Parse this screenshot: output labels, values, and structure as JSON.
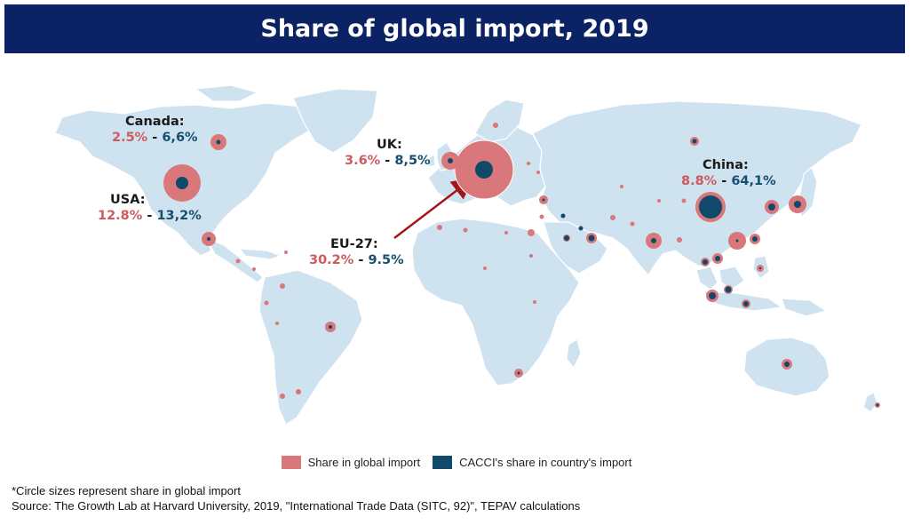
{
  "title": "Share of global import, 2019",
  "colors": {
    "global": "#d9777a",
    "cacci": "#0f4a6b",
    "land": "#cfe2f0",
    "title_bg": "#0b2265"
  },
  "callouts": {
    "canada": {
      "name": "Canada:",
      "global": "2.5%",
      "sep": " - ",
      "cacci": "6,6%"
    },
    "uk": {
      "name": "UK:",
      "global": "3.6%",
      "sep": " - ",
      "cacci": "8,5%"
    },
    "usa": {
      "name": "USA:",
      "global": "12.8%",
      "sep": " - ",
      "cacci": "13,2%"
    },
    "eu": {
      "name": "EU-27:",
      "global": "30.2%",
      "sep": " - ",
      "cacci": "9.5%"
    },
    "china": {
      "name": "China:",
      "global": "8.8%",
      "sep": " - ",
      "cacci": "64,1%"
    }
  },
  "legend": {
    "global_label": "Share in global import",
    "cacci_label": "CACCI's share in country's import"
  },
  "footnote": "*Circle sizes represent share in global import",
  "source": "Source: The Growth Lab at Harvard University, 2019, \"International Trade Data (SITC, 92)\", TEPAV calculations"
}
